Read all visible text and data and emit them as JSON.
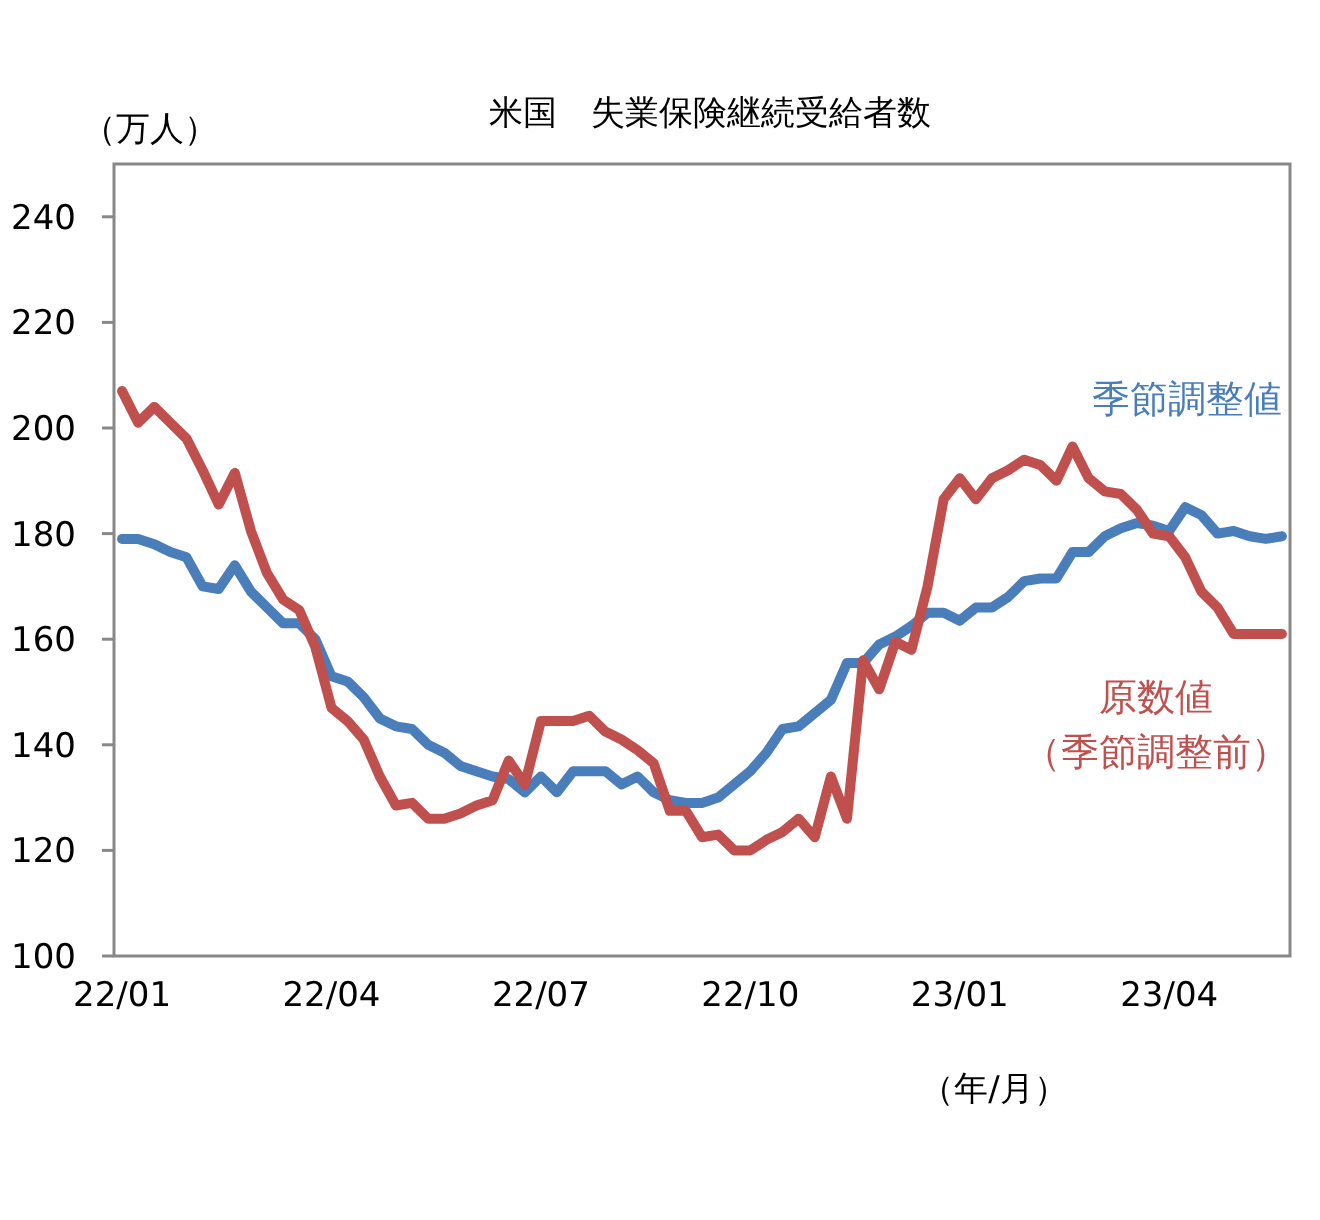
{
  "chart_data": {
    "type": "line",
    "title": "米国　失業保険継続受給者数",
    "ylabel": "（万人）",
    "xlabel": "（年/月）",
    "categories": [
      "22/01",
      null,
      null,
      null,
      null,
      null,
      null,
      null,
      null,
      null,
      null,
      null,
      null,
      "22/04",
      null,
      null,
      null,
      null,
      null,
      null,
      null,
      null,
      null,
      null,
      null,
      null,
      "22/07",
      null,
      null,
      null,
      null,
      null,
      null,
      null,
      null,
      null,
      null,
      null,
      null,
      "22/10",
      null,
      null,
      null,
      null,
      null,
      null,
      null,
      null,
      null,
      null,
      null,
      null,
      "23/01",
      null,
      null,
      null,
      null,
      null,
      null,
      null,
      null,
      null,
      null,
      null,
      null,
      "23/04",
      null,
      null,
      null,
      null,
      null,
      null,
      null
    ],
    "series": [
      {
        "name": "季節調整値",
        "color": "#4a7ebb",
        "values": [
          179,
          179,
          178,
          176.5,
          175.5,
          170,
          169.5,
          174,
          169,
          166,
          163,
          163,
          160,
          153,
          152,
          149,
          145,
          143.5,
          143,
          140,
          138.5,
          136,
          135,
          134,
          133.5,
          131,
          134,
          131,
          135,
          135,
          135,
          132.5,
          134,
          131,
          129.5,
          129,
          129,
          130,
          132.5,
          135,
          138.5,
          143,
          143.5,
          146,
          148.5,
          155.5,
          155.5,
          159,
          160.5,
          162.5,
          165,
          165,
          163.5,
          166,
          166,
          168,
          171,
          171.5,
          171.5,
          176.5,
          176.5,
          179.5,
          181,
          182,
          181.5,
          180.5,
          185,
          183.5,
          180,
          180.5,
          179.5,
          179,
          179.5
        ]
      },
      {
        "name": "原数値（季節調整前）",
        "color": "#c0504d",
        "values": [
          207,
          201,
          204,
          201,
          198,
          192,
          185.5,
          191.5,
          180.5,
          172.5,
          167.5,
          165.5,
          158.5,
          147,
          144.5,
          141,
          134,
          128.5,
          129,
          126,
          126,
          127,
          128.5,
          129.5,
          137,
          132.5,
          144.5,
          144.5,
          144.5,
          145.5,
          142.5,
          141,
          139,
          136.5,
          127.5,
          127.5,
          122.5,
          123,
          120,
          120,
          122,
          123.5,
          126,
          122.5,
          134,
          126,
          156,
          150.5,
          159.5,
          158,
          170,
          186.5,
          190.5,
          186.5,
          190.5,
          192,
          194,
          193,
          190,
          196.5,
          190.5,
          188,
          187.5,
          184.5,
          180,
          179.5,
          175.5,
          169,
          166,
          161,
          161,
          161,
          161
        ]
      }
    ],
    "ylim": [
      100,
      250
    ],
    "yticks": [
      100,
      120,
      140,
      160,
      180,
      200,
      220,
      240
    ]
  }
}
